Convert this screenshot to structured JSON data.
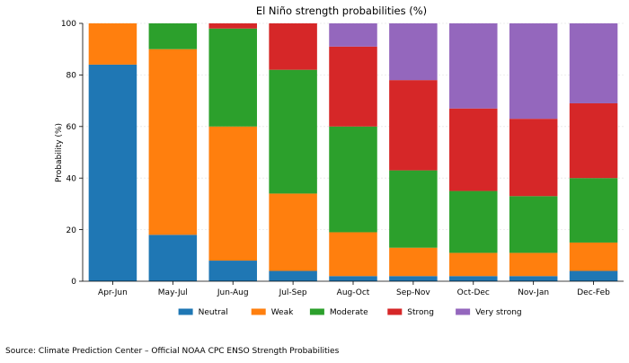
{
  "chart_data": {
    "type": "bar",
    "stacked": true,
    "title": "El Niño strength probabilities (%)",
    "xlabel": "",
    "ylabel": "Probability (%)",
    "ylim": [
      0,
      100
    ],
    "yticks": [
      0,
      20,
      40,
      60,
      80,
      100
    ],
    "grid": false,
    "legend_position": "bottom-center",
    "categories": [
      "Apr-Jun",
      "May-Jul",
      "Jun-Aug",
      "Jul-Sep",
      "Aug-Oct",
      "Sep-Nov",
      "Oct-Dec",
      "Nov-Jan",
      "Dec-Feb"
    ],
    "series": [
      {
        "name": "Neutral",
        "color": "#1f77b4",
        "values": [
          84,
          18,
          8,
          4,
          2,
          2,
          2,
          2,
          4
        ]
      },
      {
        "name": "Weak",
        "color": "#ff7f0e",
        "values": [
          16,
          72,
          52,
          30,
          17,
          11,
          9,
          9,
          11
        ]
      },
      {
        "name": "Moderate",
        "color": "#2ca02c",
        "values": [
          0,
          10,
          38,
          48,
          41,
          30,
          24,
          22,
          25
        ]
      },
      {
        "name": "Strong",
        "color": "#d62728",
        "values": [
          0,
          0,
          2,
          18,
          31,
          35,
          32,
          30,
          29
        ]
      },
      {
        "name": "Very strong",
        "color": "#9467bd",
        "values": [
          0,
          0,
          0,
          0,
          9,
          22,
          33,
          37,
          31
        ]
      }
    ]
  },
  "source_note": "Source: Climate Prediction Center – Official NOAA CPC ENSO Strength Probabilities"
}
